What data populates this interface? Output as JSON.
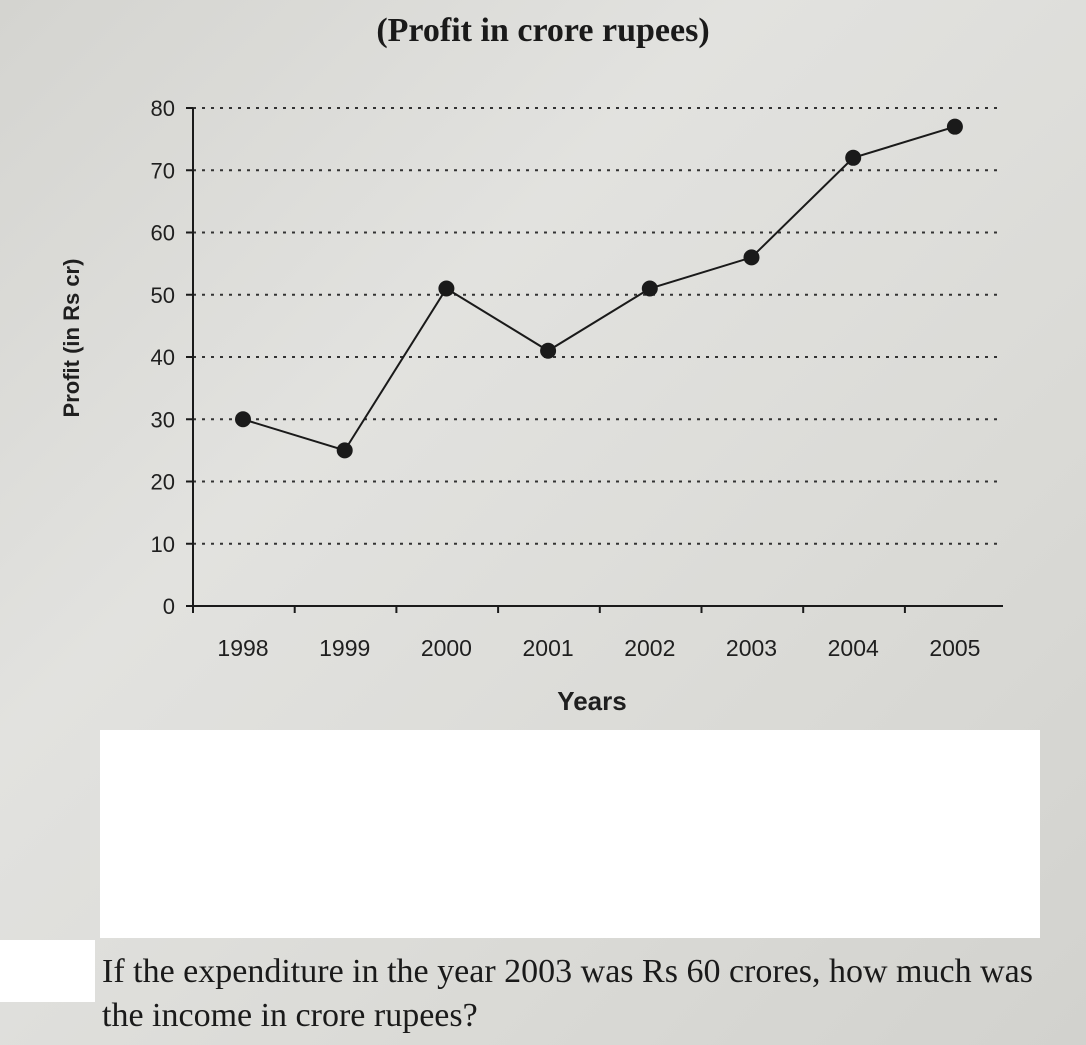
{
  "chart_data": {
    "type": "line",
    "title": "(Profit in crore rupees)",
    "xlabel": "Years",
    "ylabel": "Profit (in Rs cr)",
    "categories": [
      "1998",
      "1999",
      "2000",
      "2001",
      "2002",
      "2003",
      "2004",
      "2005"
    ],
    "series": [
      {
        "values": [
          30,
          25,
          51,
          41,
          51,
          56,
          72,
          77
        ]
      }
    ],
    "yticks": [
      0,
      10,
      20,
      30,
      40,
      50,
      60,
      70,
      80
    ],
    "ylim": [
      0,
      80
    ],
    "grid": true,
    "legend": "none"
  },
  "question": "If the expenditure in the year 2003 was Rs 60 crores, how much was the income in crore rupees?",
  "colors": {
    "line": "#1a1a1a",
    "marker": "#1a1a1a",
    "grid": "#333333"
  }
}
